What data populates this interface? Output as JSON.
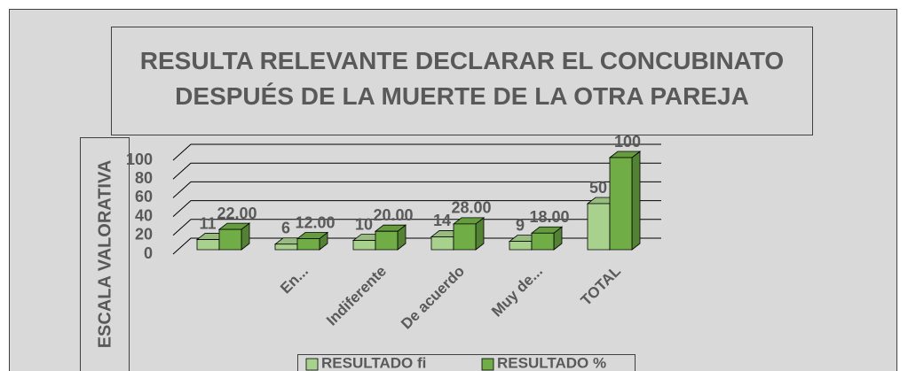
{
  "chart_data": {
    "type": "bar3d",
    "title": "RESULTA RELEVANTE DECLARAR EL CONCUBINATO DESPUÉS DE LA MUERTE DE LA OTRA PAREJA",
    "y_label": "ESCALA VALORATIVA",
    "categories": [
      null,
      "En...",
      "Indiferente",
      "De acuerdo",
      "Muy de...",
      "TOTAL"
    ],
    "series": [
      {
        "name": "RESULTADO fi",
        "color": "#a9d18e",
        "values": [
          11,
          6,
          10,
          14,
          9,
          50
        ]
      },
      {
        "name": "RESULTADO %",
        "color": "#70ad47",
        "values": [
          22,
          12,
          20,
          28,
          18,
          100
        ],
        "value_labels": [
          "22.00",
          "12.00",
          "20.00",
          "28.00",
          "18.00",
          "100"
        ]
      }
    ],
    "ylim": [
      0,
      100
    ],
    "yticks": [
      0,
      20,
      40,
      60,
      80,
      100
    ],
    "grid": true,
    "legend": "bottom"
  }
}
